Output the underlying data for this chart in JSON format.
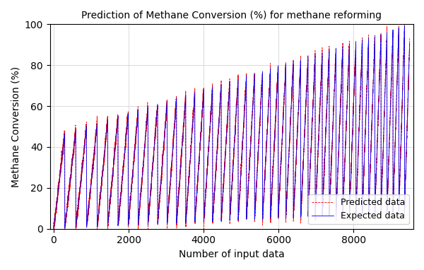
{
  "title": "Prediction of Methane Conversion (%) for methane reforming",
  "xlabel": "Number of input data",
  "ylabel": "Methane Conversion (%)",
  "ylim": [
    0,
    100
  ],
  "xlim": [
    -100,
    9600
  ],
  "n_points": 9500,
  "expected_color": "blue",
  "predicted_color": "red",
  "expected_label": "Expected data",
  "predicted_label": "Predicted data",
  "linewidth_expected": 0.6,
  "linewidth_predicted": 0.6,
  "grid": true,
  "figsize": [
    6.0,
    3.82
  ],
  "dpi": 100,
  "xticks": [
    0,
    2000,
    4000,
    6000,
    8000
  ],
  "yticks": [
    0,
    20,
    40,
    60,
    80,
    100
  ]
}
